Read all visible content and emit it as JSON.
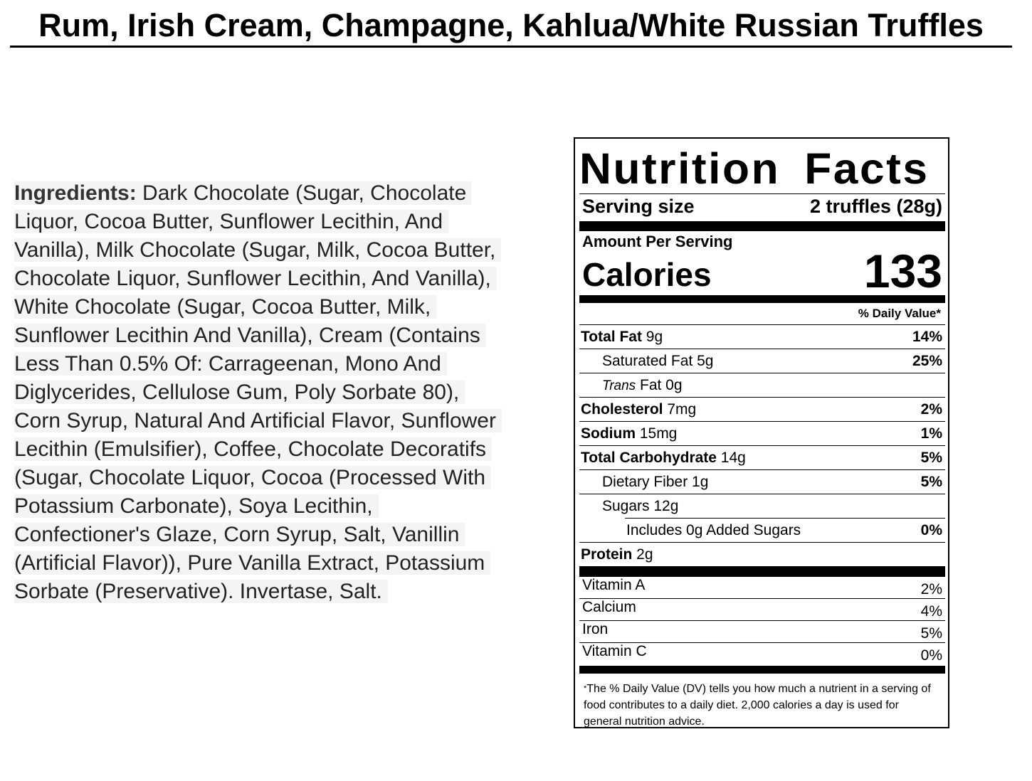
{
  "title": "Rum, Irish Cream, Champagne, Kahlua/White Russian Truffles",
  "ingredients": {
    "label": "Ingredients:",
    "lines": [
      " Dark Chocolate (Sugar, Chocolate",
      "Liquor, Cocoa Butter, Sunflower Lecithin, And",
      "Vanilla), Milk Chocolate (Sugar, Milk, Cocoa Butter,",
      "Chocolate Liquor, Sunflower Lecithin, And Vanilla),",
      "White Chocolate (Sugar, Cocoa Butter, Milk,",
      "Sunflower Lecithin And Vanilla), Cream (Contains",
      "Less Than 0.5% Of: Carrageenan, Mono And",
      "Diglycerides, Cellulose Gum, Poly Sorbate 80),",
      "Corn Syrup, Natural And Artificial Flavor, Sunflower",
      "Lecithin (Emulsifier), Coffee, Chocolate Decoratifs",
      "(Sugar, Chocolate Liquor, Cocoa (Processed With",
      "Potassium Carbonate), Soya Lecithin,",
      "Confectioner's Glaze, Corn Syrup, Salt, Vanillin",
      "(Artificial Flavor)), Pure Vanilla Extract, Potassium",
      "Sorbate (Preservative). Invertase, Salt."
    ]
  },
  "nutrition": {
    "heading": "Nutrition Facts",
    "serving_label": "Serving size",
    "serving_value": "2 truffles (28g)",
    "amount_per_serving": "Amount Per Serving",
    "calories_label": "Calories",
    "calories_value": "133",
    "dv_header": "% Daily Value*",
    "rows": [
      {
        "name": "Total Fat",
        "amount": " 9g",
        "dv": "14%"
      },
      {
        "name": "Saturated Fat",
        "amount": " 5g",
        "dv": "25%"
      },
      {
        "name": "Trans",
        "amount": " Fat 0g",
        "dv": ""
      },
      {
        "name": "Cholesterol",
        "amount": " 7mg",
        "dv": "2%"
      },
      {
        "name": "Sodium",
        "amount": " 15mg",
        "dv": "1%"
      },
      {
        "name": "Total Carbohydrate",
        "amount": " 14g",
        "dv": "5%"
      },
      {
        "name": "Dietary Fiber",
        "amount": " 1g",
        "dv": "5%"
      },
      {
        "name": "Sugars",
        "amount": " 12g",
        "dv": ""
      },
      {
        "name": "Includes 0g Added Sugars",
        "amount": "",
        "dv": "0%"
      },
      {
        "name": "Protein",
        "amount": " 2g",
        "dv": ""
      }
    ],
    "vitamins": [
      {
        "name": "Vitamin A",
        "dv": "2%"
      },
      {
        "name": "Calcium",
        "dv": "4%"
      },
      {
        "name": "Iron",
        "dv": "5%"
      },
      {
        "name": "Vitamin C",
        "dv": "0%"
      }
    ],
    "footnote_star": "*",
    "footnote": "The % Daily Value (DV) tells you how much a nutrient in a serving of food contributes to a daily diet. 2,000 calories a day is used for general nutrition advice."
  }
}
